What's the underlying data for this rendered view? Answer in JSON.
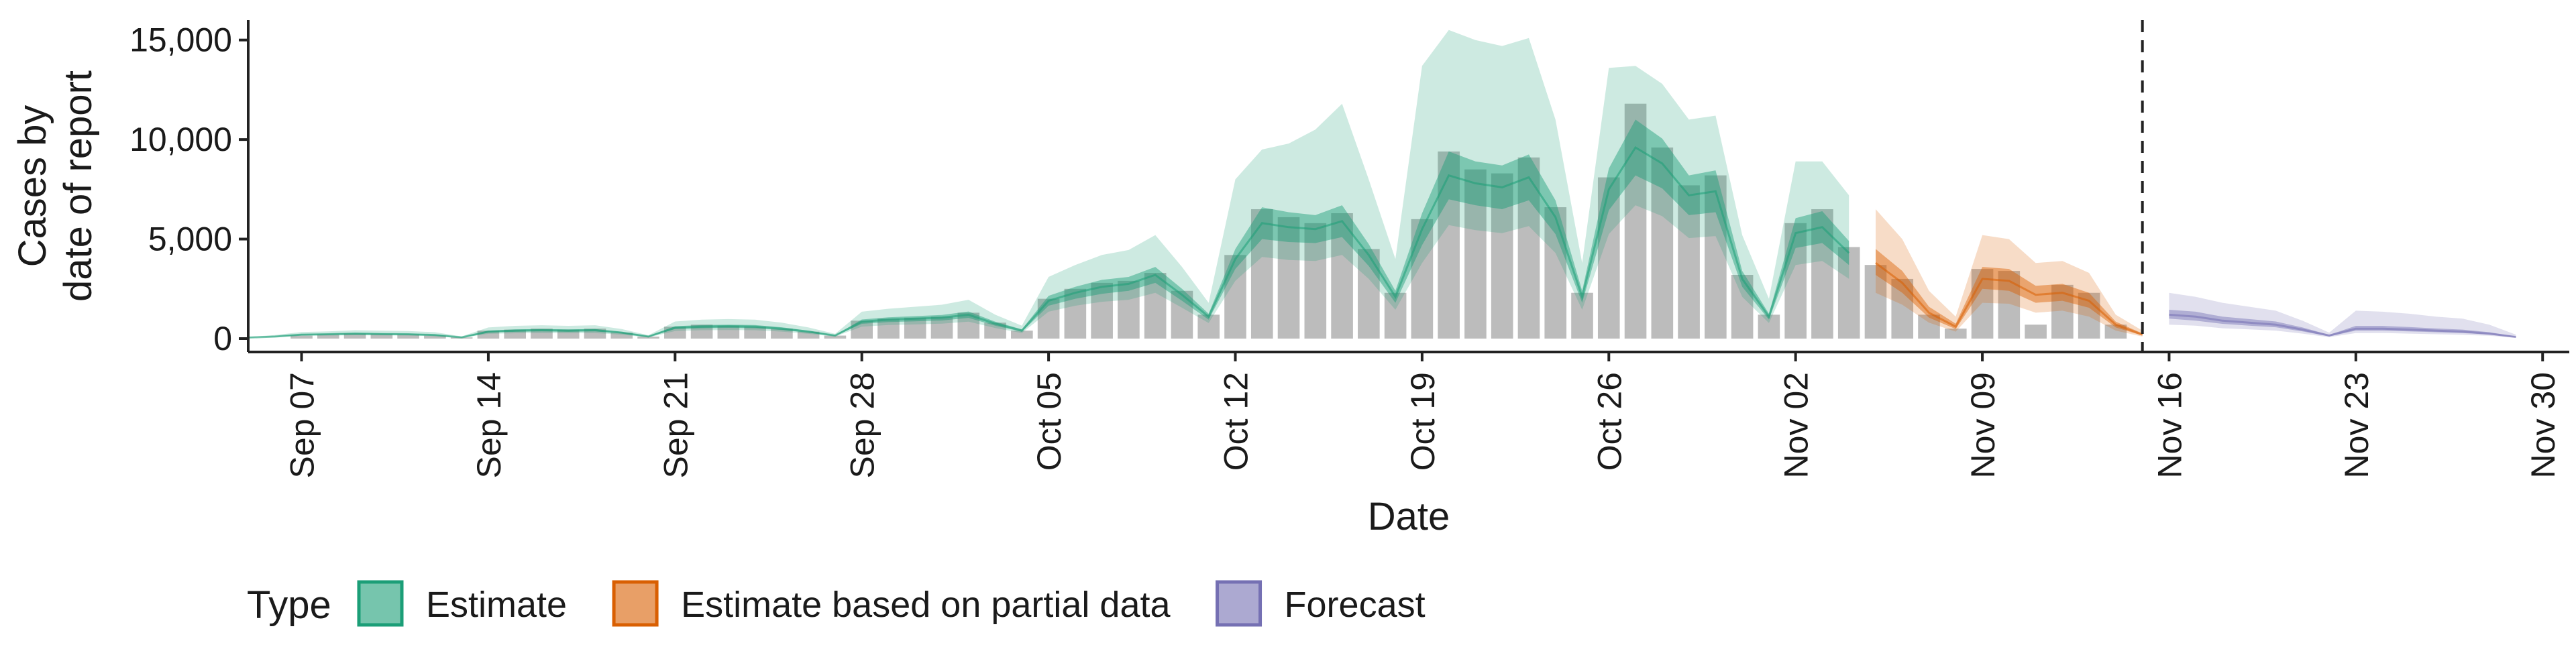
{
  "chart_data": {
    "type": "bar",
    "title": "",
    "xlabel": "Date",
    "ylabel": [
      "Cases by",
      "date of report"
    ],
    "y_ticks": [
      0,
      5000,
      10000,
      15000
    ],
    "y_tick_labels": [
      "0",
      "5,000",
      "10,000",
      "15,000"
    ],
    "ylim": [
      0,
      16000
    ],
    "x_range": [
      "2020-09-05",
      "2020-12-01"
    ],
    "x_ticks": [
      "2020-09-07",
      "2020-09-14",
      "2020-09-21",
      "2020-09-28",
      "2020-10-05",
      "2020-10-12",
      "2020-10-19",
      "2020-10-26",
      "2020-11-02",
      "2020-11-09",
      "2020-11-16",
      "2020-11-23",
      "2020-11-30"
    ],
    "x_tick_labels": [
      "Sep 07",
      "Sep 14",
      "Sep 21",
      "Sep 28",
      "Oct 05",
      "Oct 12",
      "Oct 19",
      "Oct 26",
      "Nov 02",
      "Nov 09",
      "Nov 16",
      "Nov 23",
      "Nov 30"
    ],
    "forecast_line_date": "2020-11-15",
    "grid": false,
    "legend": {
      "title": "Type",
      "position": "bottom-left",
      "entries": [
        {
          "label": "Estimate",
          "color": "#1b9e77"
        },
        {
          "label": "Estimate based on partial data",
          "color": "#d95f02"
        },
        {
          "label": "Forecast",
          "color": "#7570b3"
        }
      ]
    },
    "colors": {
      "bars": "#b3b3b3",
      "estimate": "#1b9e77",
      "partial": "#d95f02",
      "forecast": "#7570b3"
    },
    "reported_cases": {
      "dates": [
        "2020-09-07",
        "2020-09-08",
        "2020-09-09",
        "2020-09-10",
        "2020-09-11",
        "2020-09-12",
        "2020-09-13",
        "2020-09-14",
        "2020-09-15",
        "2020-09-16",
        "2020-09-17",
        "2020-09-18",
        "2020-09-19",
        "2020-09-20",
        "2020-09-21",
        "2020-09-22",
        "2020-09-23",
        "2020-09-24",
        "2020-09-25",
        "2020-09-26",
        "2020-09-27",
        "2020-09-28",
        "2020-09-29",
        "2020-09-30",
        "2020-10-01",
        "2020-10-02",
        "2020-10-03",
        "2020-10-04",
        "2020-10-05",
        "2020-10-06",
        "2020-10-07",
        "2020-10-08",
        "2020-10-09",
        "2020-10-10",
        "2020-10-11",
        "2020-10-12",
        "2020-10-13",
        "2020-10-14",
        "2020-10-15",
        "2020-10-16",
        "2020-10-17",
        "2020-10-18",
        "2020-10-19",
        "2020-10-20",
        "2020-10-21",
        "2020-10-22",
        "2020-10-23",
        "2020-10-24",
        "2020-10-25",
        "2020-10-26",
        "2020-10-27",
        "2020-10-28",
        "2020-10-29",
        "2020-10-30",
        "2020-10-31",
        "2020-11-01",
        "2020-11-02",
        "2020-11-03",
        "2020-11-04",
        "2020-11-05",
        "2020-11-06",
        "2020-11-07",
        "2020-11-08",
        "2020-11-09",
        "2020-11-10",
        "2020-11-11",
        "2020-11-12",
        "2020-11-13",
        "2020-11-14"
      ],
      "values": [
        150,
        200,
        250,
        220,
        200,
        150,
        60,
        400,
        450,
        500,
        450,
        500,
        300,
        100,
        600,
        700,
        650,
        600,
        500,
        350,
        150,
        900,
        1000,
        1050,
        1100,
        1300,
        800,
        400,
        2000,
        2500,
        2800,
        2900,
        3300,
        2400,
        1200,
        4200,
        6500,
        6100,
        5800,
        6300,
        4500,
        2300,
        6000,
        9400,
        8500,
        8300,
        9100,
        6600,
        2300,
        8100,
        11800,
        9600,
        7700,
        8200,
        3200,
        1200,
        5800,
        6500,
        4600,
        3700,
        3000,
        1200,
        500,
        3500,
        3400,
        700,
        2700,
        2300,
        700
      ]
    },
    "series": [
      {
        "name": "Estimate",
        "dates": [
          "2020-09-05",
          "2020-09-06",
          "2020-09-07",
          "2020-09-08",
          "2020-09-09",
          "2020-09-10",
          "2020-09-11",
          "2020-09-12",
          "2020-09-13",
          "2020-09-14",
          "2020-09-15",
          "2020-09-16",
          "2020-09-17",
          "2020-09-18",
          "2020-09-19",
          "2020-09-20",
          "2020-09-21",
          "2020-09-22",
          "2020-09-23",
          "2020-09-24",
          "2020-09-25",
          "2020-09-26",
          "2020-09-27",
          "2020-09-28",
          "2020-09-29",
          "2020-09-30",
          "2020-10-01",
          "2020-10-02",
          "2020-10-03",
          "2020-10-04",
          "2020-10-05",
          "2020-10-06",
          "2020-10-07",
          "2020-10-08",
          "2020-10-09",
          "2020-10-10",
          "2020-10-11",
          "2020-10-12",
          "2020-10-13",
          "2020-10-14",
          "2020-10-15",
          "2020-10-16",
          "2020-10-17",
          "2020-10-18",
          "2020-10-19",
          "2020-10-20",
          "2020-10-21",
          "2020-10-22",
          "2020-10-23",
          "2020-10-24",
          "2020-10-25",
          "2020-10-26",
          "2020-10-27",
          "2020-10-28",
          "2020-10-29",
          "2020-10-30",
          "2020-10-31",
          "2020-11-01",
          "2020-11-02",
          "2020-11-03",
          "2020-11-04"
        ],
        "median": [
          50,
          100,
          200,
          220,
          250,
          230,
          220,
          180,
          60,
          350,
          400,
          420,
          400,
          420,
          300,
          100,
          550,
          600,
          620,
          600,
          500,
          350,
          150,
          850,
          950,
          1000,
          1050,
          1200,
          750,
          400,
          1900,
          2300,
          2600,
          2750,
          3200,
          2200,
          1100,
          4000,
          5800,
          5600,
          5500,
          5900,
          4200,
          2100,
          5500,
          8200,
          7800,
          7600,
          8100,
          6100,
          2100,
          7500,
          9600,
          8800,
          7200,
          7400,
          3000,
          1100,
          5300,
          5600,
          4300
        ],
        "inner": [
          [
            50,
            60
          ],
          [
            90,
            120
          ],
          [
            170,
            230
          ],
          [
            190,
            250
          ],
          [
            210,
            290
          ],
          [
            200,
            270
          ],
          [
            190,
            250
          ],
          [
            150,
            210
          ],
          [
            50,
            70
          ],
          [
            300,
            400
          ],
          [
            340,
            460
          ],
          [
            360,
            480
          ],
          [
            340,
            460
          ],
          [
            360,
            480
          ],
          [
            260,
            340
          ],
          [
            80,
            120
          ],
          [
            480,
            620
          ],
          [
            520,
            680
          ],
          [
            540,
            700
          ],
          [
            520,
            680
          ],
          [
            430,
            570
          ],
          [
            300,
            400
          ],
          [
            130,
            170
          ],
          [
            740,
            960
          ],
          [
            830,
            1070
          ],
          [
            870,
            1130
          ],
          [
            910,
            1190
          ],
          [
            1040,
            1360
          ],
          [
            650,
            850
          ],
          [
            340,
            460
          ],
          [
            1650,
            2150
          ],
          [
            2000,
            2600
          ],
          [
            2250,
            2950
          ],
          [
            2400,
            3100
          ],
          [
            2800,
            3600
          ],
          [
            1900,
            2500
          ],
          [
            950,
            1250
          ],
          [
            3500,
            4500
          ],
          [
            5000,
            6600
          ],
          [
            4850,
            6350
          ],
          [
            4800,
            6200
          ],
          [
            5100,
            6700
          ],
          [
            3650,
            4750
          ],
          [
            1800,
            2400
          ],
          [
            4700,
            6300
          ],
          [
            7000,
            9400
          ],
          [
            6700,
            8900
          ],
          [
            6500,
            8700
          ],
          [
            6950,
            9250
          ],
          [
            5250,
            6950
          ],
          [
            1800,
            2400
          ],
          [
            6450,
            8550
          ],
          [
            8200,
            11000
          ],
          [
            7550,
            10050
          ],
          [
            6200,
            8200
          ],
          [
            6350,
            8450
          ],
          [
            2600,
            3400
          ],
          [
            950,
            1250
          ],
          [
            4550,
            6050
          ],
          [
            4800,
            6400
          ],
          [
            3700,
            4900
          ]
        ],
        "outer": [
          [
            30,
            80
          ],
          [
            70,
            180
          ],
          [
            140,
            330
          ],
          [
            150,
            360
          ],
          [
            170,
            420
          ],
          [
            160,
            400
          ],
          [
            150,
            380
          ],
          [
            120,
            320
          ],
          [
            40,
            110
          ],
          [
            240,
            560
          ],
          [
            270,
            640
          ],
          [
            280,
            670
          ],
          [
            270,
            640
          ],
          [
            280,
            670
          ],
          [
            200,
            480
          ],
          [
            60,
            170
          ],
          [
            380,
            860
          ],
          [
            420,
            950
          ],
          [
            430,
            980
          ],
          [
            420,
            950
          ],
          [
            350,
            800
          ],
          [
            240,
            560
          ],
          [
            100,
            240
          ],
          [
            600,
            1350
          ],
          [
            680,
            1500
          ],
          [
            710,
            1600
          ],
          [
            750,
            1700
          ],
          [
            850,
            1950
          ],
          [
            530,
            1200
          ],
          [
            280,
            650
          ],
          [
            1350,
            3100
          ],
          [
            1650,
            3700
          ],
          [
            1850,
            4200
          ],
          [
            1950,
            4450
          ],
          [
            2300,
            5200
          ],
          [
            1550,
            3600
          ],
          [
            780,
            1800
          ],
          [
            2900,
            8000
          ],
          [
            4100,
            9500
          ],
          [
            3950,
            9800
          ],
          [
            3900,
            10500
          ],
          [
            4200,
            11800
          ],
          [
            3000,
            8000
          ],
          [
            1450,
            4000
          ],
          [
            3800,
            13700
          ],
          [
            5700,
            15500
          ],
          [
            5450,
            15000
          ],
          [
            5300,
            14700
          ],
          [
            5650,
            15100
          ],
          [
            4300,
            11000
          ],
          [
            1450,
            3800
          ],
          [
            5250,
            13600
          ],
          [
            6700,
            13700
          ],
          [
            6150,
            12800
          ],
          [
            5050,
            11000
          ],
          [
            5150,
            11200
          ],
          [
            2100,
            5200
          ],
          [
            780,
            2000
          ],
          [
            3700,
            8900
          ],
          [
            3900,
            8900
          ],
          [
            3000,
            7200
          ]
        ]
      },
      {
        "name": "Estimate based on partial data",
        "dates": [
          "2020-11-05",
          "2020-11-06",
          "2020-11-07",
          "2020-11-08",
          "2020-11-09",
          "2020-11-10",
          "2020-11-11",
          "2020-11-12",
          "2020-11-13",
          "2020-11-14",
          "2020-11-15"
        ],
        "median": [
          3800,
          2800,
          1300,
          600,
          3000,
          2900,
          2200,
          2300,
          1900,
          700,
          200
        ],
        "inner": [
          [
            3200,
            4500
          ],
          [
            2300,
            3400
          ],
          [
            1050,
            1600
          ],
          [
            480,
            750
          ],
          [
            2500,
            3600
          ],
          [
            2400,
            3500
          ],
          [
            1800,
            2650
          ],
          [
            1900,
            2750
          ],
          [
            1550,
            2300
          ],
          [
            560,
            850
          ],
          [
            150,
            260
          ]
        ],
        "outer": [
          [
            2300,
            6500
          ],
          [
            1700,
            5000
          ],
          [
            800,
            2400
          ],
          [
            350,
            1100
          ],
          [
            1800,
            5200
          ],
          [
            1750,
            5000
          ],
          [
            1300,
            3800
          ],
          [
            1400,
            3900
          ],
          [
            1100,
            3300
          ],
          [
            400,
            1200
          ],
          [
            100,
            400
          ]
        ]
      },
      {
        "name": "Forecast",
        "dates": [
          "2020-11-16",
          "2020-11-17",
          "2020-11-18",
          "2020-11-19",
          "2020-11-20",
          "2020-11-21",
          "2020-11-22",
          "2020-11-23",
          "2020-11-24",
          "2020-11-25",
          "2020-11-26",
          "2020-11-27",
          "2020-11-28",
          "2020-11-29"
        ],
        "median": [
          1200,
          1100,
          900,
          800,
          700,
          450,
          150,
          500,
          500,
          450,
          400,
          350,
          250,
          80
        ],
        "inner": [
          [
            1000,
            1450
          ],
          [
            900,
            1350
          ],
          [
            740,
            1100
          ],
          [
            650,
            980
          ],
          [
            570,
            860
          ],
          [
            360,
            560
          ],
          [
            110,
            190
          ],
          [
            400,
            640
          ],
          [
            400,
            640
          ],
          [
            360,
            580
          ],
          [
            320,
            510
          ],
          [
            280,
            450
          ],
          [
            200,
            320
          ],
          [
            60,
            110
          ]
        ],
        "outer": [
          [
            700,
            2300
          ],
          [
            650,
            2100
          ],
          [
            520,
            1800
          ],
          [
            460,
            1600
          ],
          [
            400,
            1400
          ],
          [
            250,
            900
          ],
          [
            70,
            300
          ],
          [
            280,
            1400
          ],
          [
            280,
            1350
          ],
          [
            250,
            1250
          ],
          [
            220,
            1100
          ],
          [
            190,
            1000
          ],
          [
            140,
            700
          ],
          [
            40,
            200
          ]
        ]
      }
    ]
  }
}
